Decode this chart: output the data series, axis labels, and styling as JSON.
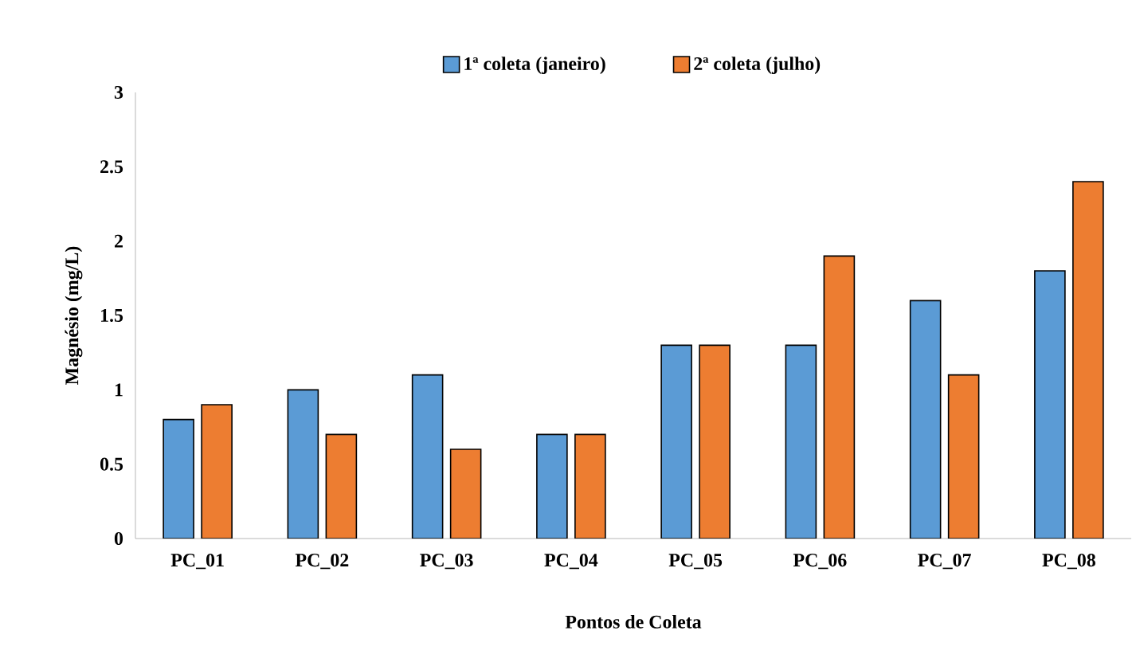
{
  "chart_data": {
    "type": "bar",
    "xlabel": "Pontos de Coleta",
    "ylabel": "Magnésio (mg/L)",
    "categories": [
      "PC_01",
      "PC_02",
      "PC_03",
      "PC_04",
      "PC_05",
      "PC_06",
      "PC_07",
      "PC_08"
    ],
    "series": [
      {
        "name": "1ª coleta (janeiro)",
        "color": "#5b9bd5",
        "values": [
          0.8,
          1.0,
          1.1,
          0.7,
          1.3,
          1.3,
          1.6,
          1.8
        ]
      },
      {
        "name": "2ª coleta (julho)",
        "color": "#ed7d31",
        "values": [
          0.9,
          0.7,
          0.6,
          0.7,
          1.3,
          1.9,
          1.1,
          2.4
        ]
      }
    ],
    "ylim": [
      0,
      3
    ],
    "yticks": [
      0,
      0.5,
      1,
      1.5,
      2,
      2.5,
      3
    ],
    "legend": "top"
  }
}
